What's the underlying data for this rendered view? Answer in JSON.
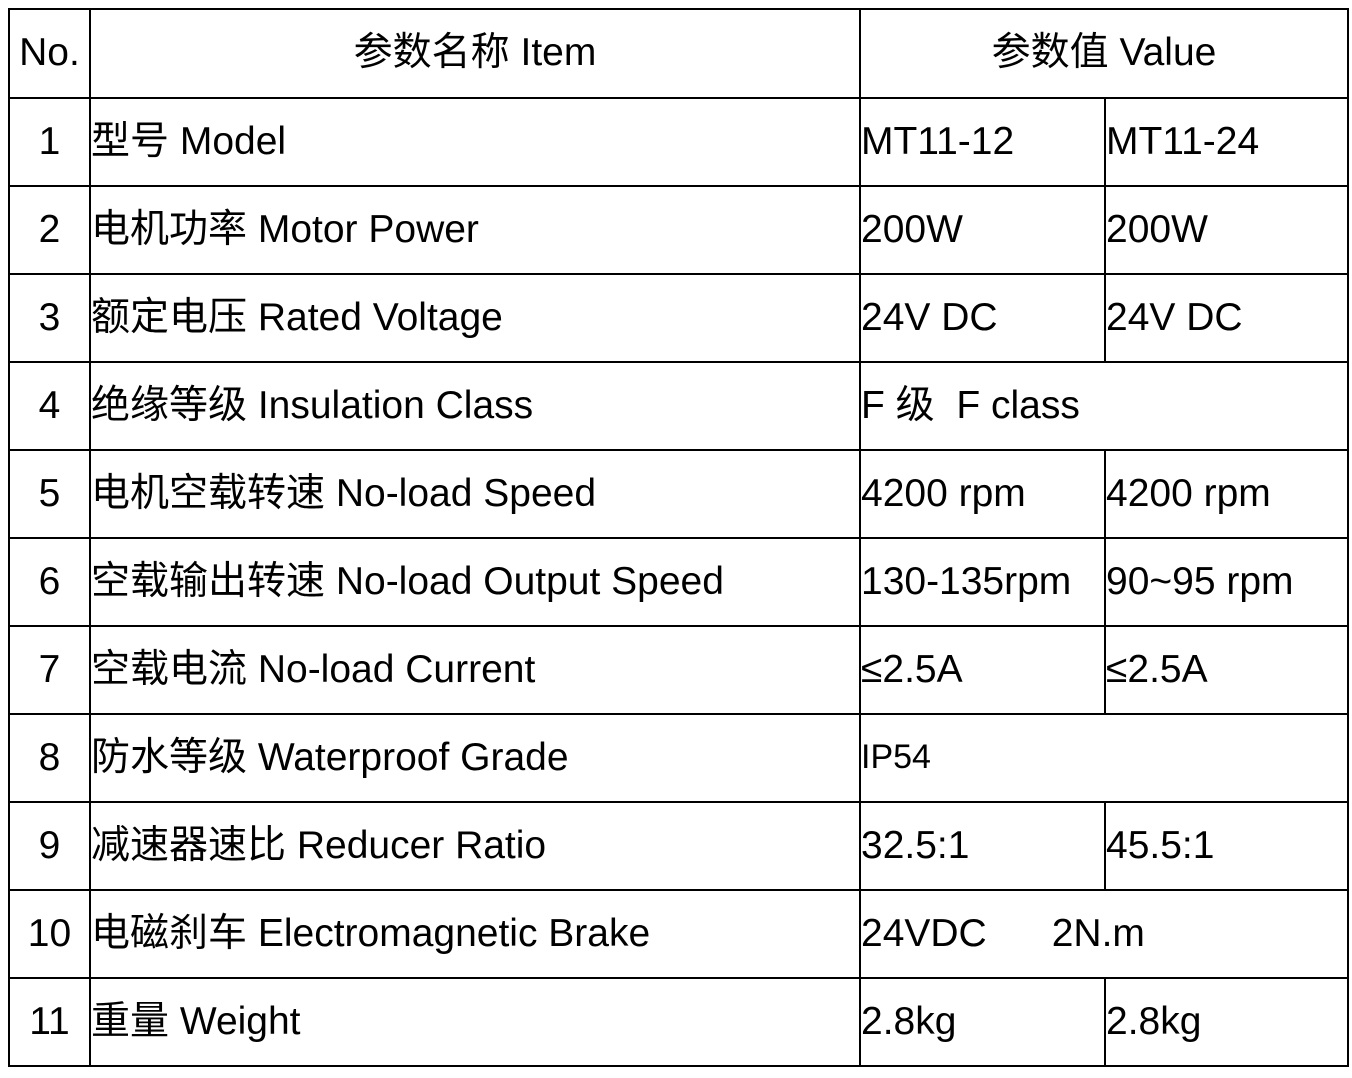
{
  "table": {
    "headers": {
      "no": "No.",
      "item": "参数名称 Item",
      "value": "参数值 Value"
    },
    "rows": [
      {
        "no": "1",
        "item": "型号 Model",
        "values": [
          "MT11-12",
          "MT11-24"
        ],
        "merged": false
      },
      {
        "no": "2",
        "item": "电机功率 Motor Power",
        "values": [
          "200W",
          "200W"
        ],
        "merged": false
      },
      {
        "no": "3",
        "item": "额定电压 Rated Voltage",
        "values": [
          "24V DC",
          "24V DC"
        ],
        "merged": false
      },
      {
        "no": "4",
        "item": "绝缘等级 Insulation Class",
        "values": [
          "F 级  F class"
        ],
        "merged": true
      },
      {
        "no": "5",
        "item": "电机空载转速 No-load Speed",
        "values": [
          "4200 rpm",
          "4200 rpm"
        ],
        "merged": false
      },
      {
        "no": "6",
        "item": "空载输出转速 No-load Output Speed",
        "values": [
          "130-135rpm",
          "90~95 rpm"
        ],
        "merged": false
      },
      {
        "no": "7",
        "item": "空载电流 No-load Current",
        "values": [
          "≤2.5A",
          "≤2.5A"
        ],
        "merged": false
      },
      {
        "no": "8",
        "item": "防水等级 Waterproof Grade",
        "values": [
          "IP54"
        ],
        "merged": true
      },
      {
        "no": "9",
        "item": "减速器速比 Reducer Ratio",
        "values": [
          "32.5:1",
          "45.5:1"
        ],
        "merged": false
      },
      {
        "no": "10",
        "item": "电磁刹车 Electromagnetic Brake",
        "values": [
          "24VDC      2N.m"
        ],
        "merged": true
      },
      {
        "no": "11",
        "item": "重量 Weight",
        "values": [
          "2.8kg",
          "2.8kg"
        ],
        "merged": false
      }
    ]
  }
}
